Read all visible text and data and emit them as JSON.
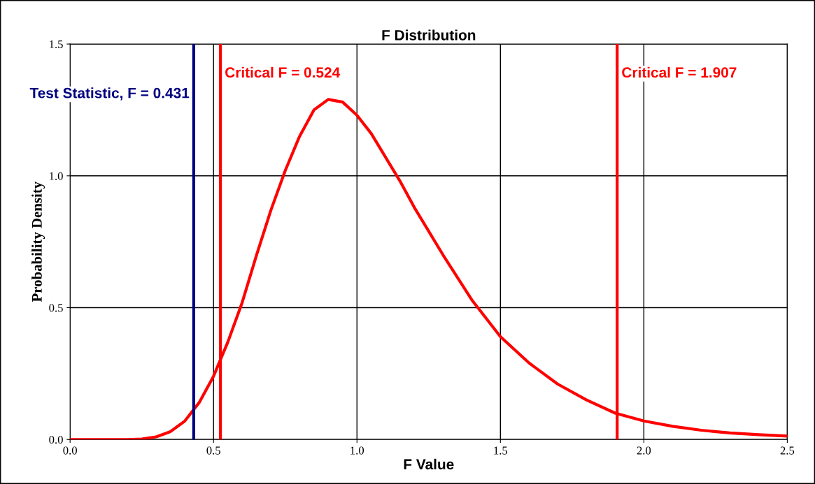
{
  "chart_data": {
    "type": "line",
    "title": "F Distribution",
    "xlabel": "F Value",
    "ylabel": "Probability Density",
    "x": [
      0,
      0.1,
      0.2,
      0.25,
      0.3,
      0.35,
      0.4,
      0.45,
      0.5,
      0.55,
      0.6,
      0.65,
      0.7,
      0.75,
      0.8,
      0.85,
      0.9,
      0.95,
      1.0,
      1.05,
      1.1,
      1.15,
      1.2,
      1.3,
      1.4,
      1.5,
      1.6,
      1.7,
      1.8,
      1.9,
      2.0,
      2.1,
      2.2,
      2.3,
      2.4,
      2.5
    ],
    "series": [
      {
        "color": "#ff0000",
        "values": [
          0,
          0,
          0,
          0.002,
          0.01,
          0.03,
          0.07,
          0.14,
          0.24,
          0.37,
          0.52,
          0.7,
          0.87,
          1.02,
          1.15,
          1.25,
          1.29,
          1.28,
          1.23,
          1.16,
          1.07,
          0.98,
          0.88,
          0.7,
          0.53,
          0.39,
          0.29,
          0.21,
          0.15,
          0.1,
          0.07,
          0.05,
          0.035,
          0.025,
          0.018,
          0.013
        ]
      }
    ],
    "xlim": [
      0,
      2.5
    ],
    "xticks": [
      {
        "value": 0,
        "label": "0.0"
      },
      0.5,
      {
        "value": 1,
        "label": "1.0"
      },
      1.5,
      {
        "value": 2,
        "label": "2.0"
      },
      2.5
    ],
    "ylim": [
      0,
      1.5
    ],
    "yticks": [
      {
        "value": 0,
        "label": "0.0"
      },
      0.5,
      {
        "value": 1,
        "label": "1.0"
      },
      1.5
    ],
    "ref_lines": [
      {
        "axis": "x",
        "value": 0.524,
        "label": "Critical F = 0.524",
        "color": "#ff0000"
      },
      {
        "axis": "x",
        "value": 0.431,
        "label": "Test Statistic, F = 0.431",
        "color": "#000080"
      },
      {
        "axis": "x",
        "value": 1.907,
        "label": "Critical F = 1.907",
        "color": "#ff0000"
      }
    ],
    "grid": true,
    "legend": false,
    "marker": "none",
    "line_style": "solid"
  }
}
